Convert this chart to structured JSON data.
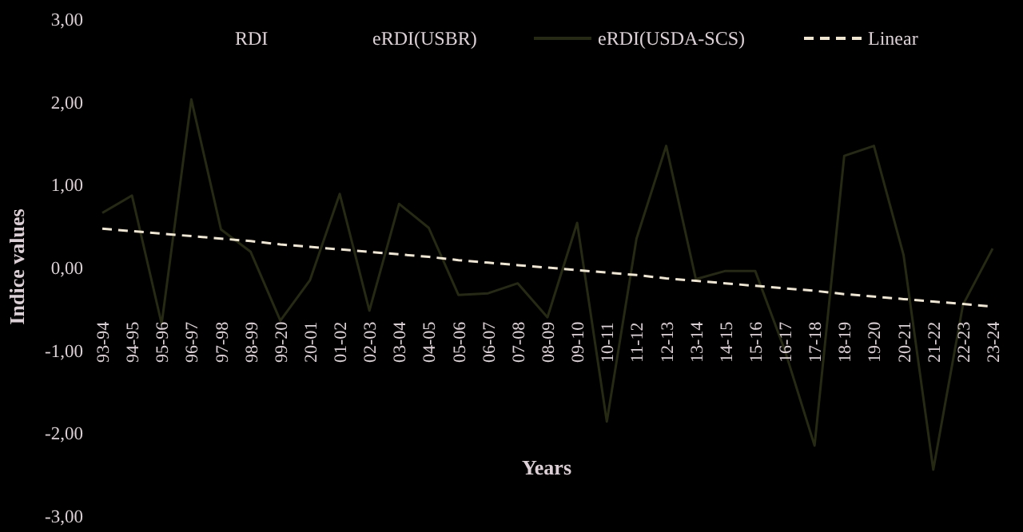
{
  "chart_data": {
    "type": "line",
    "xlabel": "Years",
    "ylabel": "Indice values",
    "annotations": [
      "RDI",
      "eRDI(USBR)"
    ],
    "categories": [
      "93-94",
      "94-95",
      "95-96",
      "96-97",
      "97-98",
      "98-99",
      "99-20",
      "20-01",
      "01-02",
      "02-03",
      "03-04",
      "04-05",
      "05-06",
      "06-07",
      "07-08",
      "08-09",
      "09-10",
      "10-11",
      "11-12",
      "12-13",
      "13-14",
      "14-15",
      "15-16",
      "16-17",
      "17-18",
      "18-19",
      "19-20",
      "20-21",
      "21-22",
      "22-23",
      "23-24"
    ],
    "series": [
      {
        "name": "eRDI(USDA-SCS)",
        "color": "#262a12",
        "values": [
          0.66,
          0.87,
          -0.68,
          2.03,
          0.46,
          0.19,
          -0.64,
          -0.15,
          0.89,
          -0.52,
          0.77,
          0.48,
          -0.33,
          -0.31,
          -0.19,
          -0.6,
          0.54,
          -1.86,
          0.35,
          1.47,
          -0.14,
          -0.04,
          -0.04,
          -1.0,
          -2.15,
          1.35,
          1.47,
          0.15,
          -2.44,
          -0.45,
          0.23
        ]
      },
      {
        "name": "Linear",
        "color": "#f0e6d0",
        "line_style": "dashed",
        "values": [
          0.47,
          0.44,
          0.41,
          0.38,
          0.35,
          0.32,
          0.28,
          0.25,
          0.22,
          0.19,
          0.16,
          0.13,
          0.09,
          0.06,
          0.03,
          0,
          -0.03,
          -0.06,
          -0.09,
          -0.13,
          -0.16,
          -0.19,
          -0.22,
          -0.25,
          -0.28,
          -0.32,
          -0.35,
          -0.38,
          -0.41,
          -0.44,
          -0.47
        ]
      }
    ],
    "ylim": [
      -3,
      3
    ],
    "yticks": [
      {
        "value": -3,
        "label": "-3,00"
      },
      {
        "value": -2,
        "label": "-2,00"
      },
      {
        "value": -1,
        "label": "-1,00"
      },
      {
        "value": 0,
        "label": "0,00"
      },
      {
        "value": 1,
        "label": "1,00"
      },
      {
        "value": 2,
        "label": "2,00"
      },
      {
        "value": 3,
        "label": "3,00"
      }
    ],
    "legend": "top",
    "marker": "none",
    "grid": false
  }
}
